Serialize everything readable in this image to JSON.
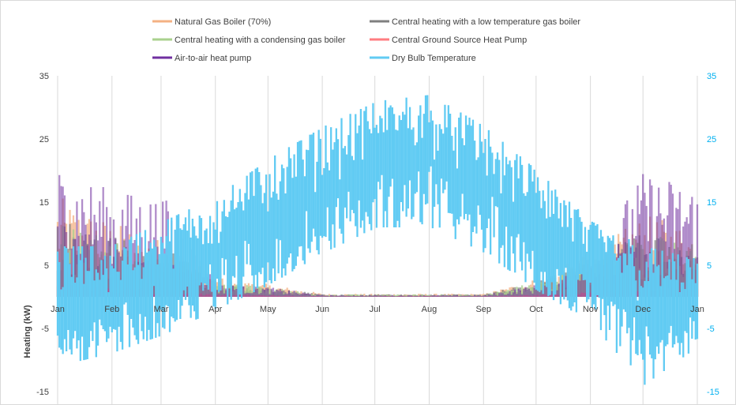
{
  "chart_data": {
    "type": "line",
    "ylabel": "Heating (kW)",
    "y_left": {
      "min": -15,
      "max": 35,
      "ticks": [
        35,
        25,
        15,
        5,
        -5,
        -15
      ]
    },
    "y_right": {
      "min": -15,
      "max": 35,
      "ticks": [
        35,
        25,
        15,
        5,
        -5,
        -15
      ]
    },
    "x_ticks": [
      "Jan",
      "Feb",
      "Mar",
      "Apr",
      "May",
      "Jun",
      "Jul",
      "Aug",
      "Sep",
      "Oct",
      "Nov",
      "Dec",
      "Jan"
    ],
    "x_units": "day of year",
    "x_tick_days": [
      0,
      31,
      59,
      90,
      120,
      151,
      181,
      212,
      243,
      273,
      304,
      334,
      365
    ],
    "grid": "vertical",
    "legend_position": "top",
    "colors": {
      "axis_left": "#404040",
      "axis_right": "#00b0f0",
      "gridline": "#d9d9d9"
    },
    "series": [
      {
        "name": "Natural Gas Boiler (70%)",
        "axis": "left",
        "color": "#f4b183",
        "opacity": 0.75,
        "monthly_peak_kW": [
          16,
          12,
          9,
          3,
          2,
          0.5,
          0.5,
          0.5,
          0.5,
          3,
          7,
          13,
          11
        ]
      },
      {
        "name": "Central heating with a low temperature gas boiler",
        "axis": "left",
        "color": "#7f7f7f",
        "opacity": 0.7,
        "monthly_peak_kW": [
          13,
          10,
          8,
          2.5,
          1.5,
          0.4,
          0.4,
          0.4,
          0.4,
          2.5,
          6,
          11,
          9
        ]
      },
      {
        "name": "Central heating with a condensing gas boiler",
        "axis": "left",
        "color": "#a9d18e",
        "opacity": 0.75,
        "monthly_peak_kW": [
          12,
          10,
          7,
          2.5,
          1.5,
          0.4,
          0.4,
          0.4,
          0.4,
          2.5,
          6,
          10,
          9
        ]
      },
      {
        "name": "Central Ground Source Heat Pump",
        "axis": "left",
        "color": "#ff7c80",
        "opacity": 0.85,
        "monthly_peak_kW": [
          2,
          1.5,
          1.2,
          0.5,
          0.3,
          0.1,
          0.1,
          0.1,
          0.1,
          0.4,
          0.8,
          1.6,
          1.4
        ]
      },
      {
        "name": "Air-to-air heat pump",
        "axis": "left",
        "color": "#7030a0",
        "opacity": 0.55,
        "monthly_peak_kW": [
          21,
          17,
          16,
          2,
          1.5,
          0.3,
          0.3,
          0.3,
          0.3,
          2,
          7,
          20,
          18
        ]
      },
      {
        "name": "Dry Bulb Temperature",
        "axis": "right",
        "color": "#61cbf3",
        "opacity": 1,
        "monthly_high_C": [
          8,
          8,
          12,
          16,
          22,
          27,
          31,
          32,
          27,
          20,
          12,
          8,
          6
        ],
        "monthly_low_C": [
          -11,
          -9,
          -6,
          -2,
          2,
          7,
          11,
          11,
          7,
          1,
          -4,
          -14,
          -8
        ]
      }
    ]
  }
}
